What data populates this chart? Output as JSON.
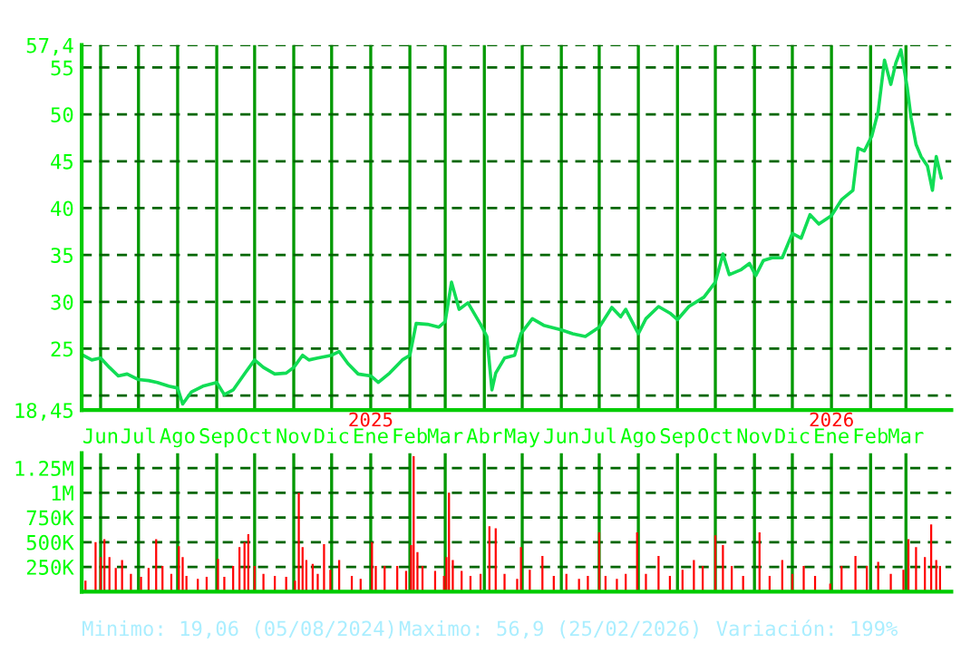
{
  "chart_data": [
    {
      "type": "line",
      "color": "#11dd55",
      "x": [
        "2024-05-18",
        "2024-05-25",
        "2024-06-01",
        "2024-06-08",
        "2024-06-15",
        "2024-06-22",
        "2024-07-01",
        "2024-07-09",
        "2024-07-16",
        "2024-07-25",
        "2024-08-01",
        "2024-08-05",
        "2024-08-12",
        "2024-08-21",
        "2024-09-01",
        "2024-09-07",
        "2024-09-14",
        "2024-09-24",
        "2024-10-01",
        "2024-10-08",
        "2024-10-17",
        "2024-10-26",
        "2024-11-01",
        "2024-11-08",
        "2024-11-13",
        "2024-11-20",
        "2024-12-01",
        "2024-12-07",
        "2024-12-14",
        "2024-12-22",
        "2025-01-01",
        "2025-01-07",
        "2025-01-16",
        "2025-01-26",
        "2025-02-01",
        "2025-02-06",
        "2025-02-15",
        "2025-02-24",
        "2025-03-01",
        "2025-03-06",
        "2025-03-12",
        "2025-03-19",
        "2025-03-29",
        "2025-04-03",
        "2025-04-07",
        "2025-04-10",
        "2025-04-17",
        "2025-04-25",
        "2025-04-30",
        "2025-05-09",
        "2025-05-18",
        "2025-06-01",
        "2025-06-10",
        "2025-06-20",
        "2025-07-01",
        "2025-07-11",
        "2025-07-18",
        "2025-07-22",
        "2025-08-01",
        "2025-08-07",
        "2025-08-17",
        "2025-08-26",
        "2025-09-01",
        "2025-09-10",
        "2025-09-22",
        "2025-10-01",
        "2025-10-07",
        "2025-10-12",
        "2025-10-21",
        "2025-10-28",
        "2025-11-02",
        "2025-11-08",
        "2025-11-15",
        "2025-11-23",
        "2025-12-01",
        "2025-12-08",
        "2025-12-15",
        "2025-12-22",
        "2026-01-01",
        "2026-01-09",
        "2026-01-18",
        "2026-01-22",
        "2026-01-27",
        "2026-02-02",
        "2026-02-07",
        "2026-02-12",
        "2026-02-17",
        "2026-02-21",
        "2026-02-25",
        "2026-03-02",
        "2026-03-05",
        "2026-03-09",
        "2026-03-13",
        "2026-03-18",
        "2026-03-22",
        "2026-03-25",
        "2026-03-29"
      ],
      "values": [
        24.3,
        23.8,
        24.0,
        23.0,
        22.1,
        22.3,
        21.7,
        21.6,
        21.4,
        21.0,
        20.8,
        19.1,
        20.4,
        21.0,
        21.4,
        20.1,
        20.6,
        22.5,
        23.8,
        23.0,
        22.3,
        22.4,
        23.0,
        24.3,
        23.8,
        24.0,
        24.3,
        24.7,
        23.4,
        22.3,
        22.1,
        21.4,
        22.4,
        23.8,
        24.3,
        27.7,
        27.6,
        27.3,
        27.9,
        32.1,
        29.2,
        29.9,
        27.6,
        26.3,
        20.6,
        22.4,
        24.0,
        24.3,
        26.6,
        28.2,
        27.5,
        27.0,
        26.6,
        26.3,
        27.3,
        29.4,
        28.4,
        29.2,
        26.6,
        28.2,
        29.5,
        28.8,
        28.1,
        29.5,
        30.5,
        32.1,
        35.1,
        32.9,
        33.4,
        34.1,
        32.8,
        34.4,
        34.7,
        34.7,
        37.3,
        36.8,
        39.3,
        38.3,
        39.2,
        40.9,
        41.9,
        46.4,
        46.1,
        47.7,
        50.3,
        55.8,
        53.2,
        55.5,
        56.9,
        52.9,
        49.7,
        46.8,
        45.5,
        44.5,
        41.9,
        45.5,
        43.2
      ],
      "xlim": [
        "2024-05-17",
        "2026-04-06"
      ],
      "xticks": [
        {
          "value": "2024-06-01",
          "label": "Jun"
        },
        {
          "value": "2024-07-01",
          "label": "Jul"
        },
        {
          "value": "2024-08-01",
          "label": "Ago"
        },
        {
          "value": "2024-09-01",
          "label": "Sep"
        },
        {
          "value": "2024-10-01",
          "label": "Oct"
        },
        {
          "value": "2024-11-01",
          "label": "Nov"
        },
        {
          "value": "2024-12-01",
          "label": "Dic"
        },
        {
          "value": "2025-01-01",
          "label": "Ene"
        },
        {
          "value": "2025-02-01",
          "label": "Feb"
        },
        {
          "value": "2025-03-01",
          "label": "Mar"
        },
        {
          "value": "2025-04-01",
          "label": "Abr"
        },
        {
          "value": "2025-05-01",
          "label": "May"
        },
        {
          "value": "2025-06-01",
          "label": "Jun"
        },
        {
          "value": "2025-07-01",
          "label": "Jul"
        },
        {
          "value": "2025-08-01",
          "label": "Ago"
        },
        {
          "value": "2025-09-01",
          "label": "Sep"
        },
        {
          "value": "2025-10-01",
          "label": "Oct"
        },
        {
          "value": "2025-11-01",
          "label": "Nov"
        },
        {
          "value": "2025-12-01",
          "label": "Dic"
        },
        {
          "value": "2026-01-01",
          "label": "Ene"
        },
        {
          "value": "2026-02-01",
          "label": "Feb"
        },
        {
          "value": "2026-03-01",
          "label": "Mar"
        }
      ],
      "ylim": [
        18.45,
        57.4
      ],
      "yticks": [
        {
          "value": 18.45,
          "label": "18,45"
        },
        {
          "value": 20,
          "label": null
        },
        25,
        30,
        35,
        40,
        45,
        50,
        55,
        {
          "value": 57.4,
          "label": "57,4"
        }
      ],
      "grid": true,
      "annotations": [
        "2025",
        "2026"
      ]
    },
    {
      "type": "bar",
      "color": "#ff0000",
      "x": [
        "2024-05-20",
        "2024-05-28",
        "2024-06-01",
        "2024-06-04",
        "2024-06-08",
        "2024-06-13",
        "2024-06-18",
        "2024-06-25",
        "2024-07-03",
        "2024-07-09",
        "2024-07-15",
        "2024-07-20",
        "2024-07-27",
        "2024-08-02",
        "2024-08-05",
        "2024-08-08",
        "2024-08-17",
        "2024-08-24",
        "2024-09-02",
        "2024-09-07",
        "2024-09-14",
        "2024-09-19",
        "2024-09-23",
        "2024-09-26",
        "2024-10-01",
        "2024-10-08",
        "2024-10-17",
        "2024-10-26",
        "2024-11-02",
        "2024-11-05",
        "2024-11-08",
        "2024-11-11",
        "2024-11-16",
        "2024-11-20",
        "2024-11-25",
        "2024-11-30",
        "2024-12-07",
        "2024-12-17",
        "2024-12-24",
        "2025-01-02",
        "2025-01-05",
        "2025-01-12",
        "2025-01-22",
        "2025-01-29",
        "2025-02-02",
        "2025-02-04",
        "2025-02-07",
        "2025-02-11",
        "2025-02-21",
        "2025-02-28",
        "2025-03-02",
        "2025-03-04",
        "2025-03-07",
        "2025-03-14",
        "2025-03-21",
        "2025-03-29",
        "2025-04-05",
        "2025-04-10",
        "2025-04-17",
        "2025-04-27",
        "2025-04-30",
        "2025-05-07",
        "2025-05-17",
        "2025-05-26",
        "2025-06-05",
        "2025-06-15",
        "2025-06-22",
        "2025-07-01",
        "2025-07-06",
        "2025-07-15",
        "2025-07-22",
        "2025-07-31",
        "2025-08-07",
        "2025-08-17",
        "2025-08-26",
        "2025-09-05",
        "2025-09-14",
        "2025-09-21",
        "2025-10-01",
        "2025-10-07",
        "2025-10-14",
        "2025-10-23",
        "2025-11-05",
        "2025-11-13",
        "2025-11-23",
        "2025-12-01",
        "2025-12-10",
        "2025-12-19",
        "2025-12-31",
        "2026-01-09",
        "2026-01-20",
        "2026-01-29",
        "2026-02-07",
        "2026-02-17",
        "2026-02-27",
        "2026-03-03",
        "2026-03-09",
        "2026-03-16",
        "2026-03-21",
        "2026-03-25",
        "2026-03-28"
      ],
      "values": [
        110000,
        500000,
        350000,
        530000,
        350000,
        240000,
        320000,
        180000,
        150000,
        240000,
        530000,
        260000,
        180000,
        460000,
        350000,
        160000,
        130000,
        150000,
        330000,
        150000,
        260000,
        450000,
        500000,
        580000,
        260000,
        180000,
        160000,
        150000,
        110000,
        1000000,
        450000,
        320000,
        280000,
        180000,
        480000,
        220000,
        320000,
        160000,
        130000,
        500000,
        260000,
        260000,
        260000,
        210000,
        470000,
        1370000,
        400000,
        260000,
        210000,
        160000,
        350000,
        1000000,
        320000,
        210000,
        160000,
        180000,
        660000,
        640000,
        180000,
        130000,
        450000,
        220000,
        360000,
        160000,
        180000,
        130000,
        160000,
        600000,
        160000,
        130000,
        180000,
        600000,
        180000,
        360000,
        160000,
        220000,
        320000,
        260000,
        570000,
        470000,
        260000,
        160000,
        600000,
        160000,
        320000,
        180000,
        260000,
        160000,
        80000,
        260000,
        360000,
        260000,
        300000,
        180000,
        220000,
        530000,
        450000,
        350000,
        680000,
        320000,
        260000
      ],
      "xlim": [
        "2024-05-17",
        "2026-04-06"
      ],
      "ylim": [
        0,
        1400000
      ],
      "yticks": [
        {
          "value": 250000,
          "label": "250K"
        },
        {
          "value": 500000,
          "label": "500K"
        },
        {
          "value": 750000,
          "label": "750K"
        },
        {
          "value": 1000000,
          "label": "1M"
        },
        {
          "value": 1250000,
          "label": "1.25M"
        }
      ],
      "tick_labels": "y",
      "grid": true,
      "annotations": [
        "Minimo: 19,06 (05/08/2024)",
        "Maximo: 56,9 (25/02/2026)",
        "Variación: 199%"
      ]
    }
  ]
}
